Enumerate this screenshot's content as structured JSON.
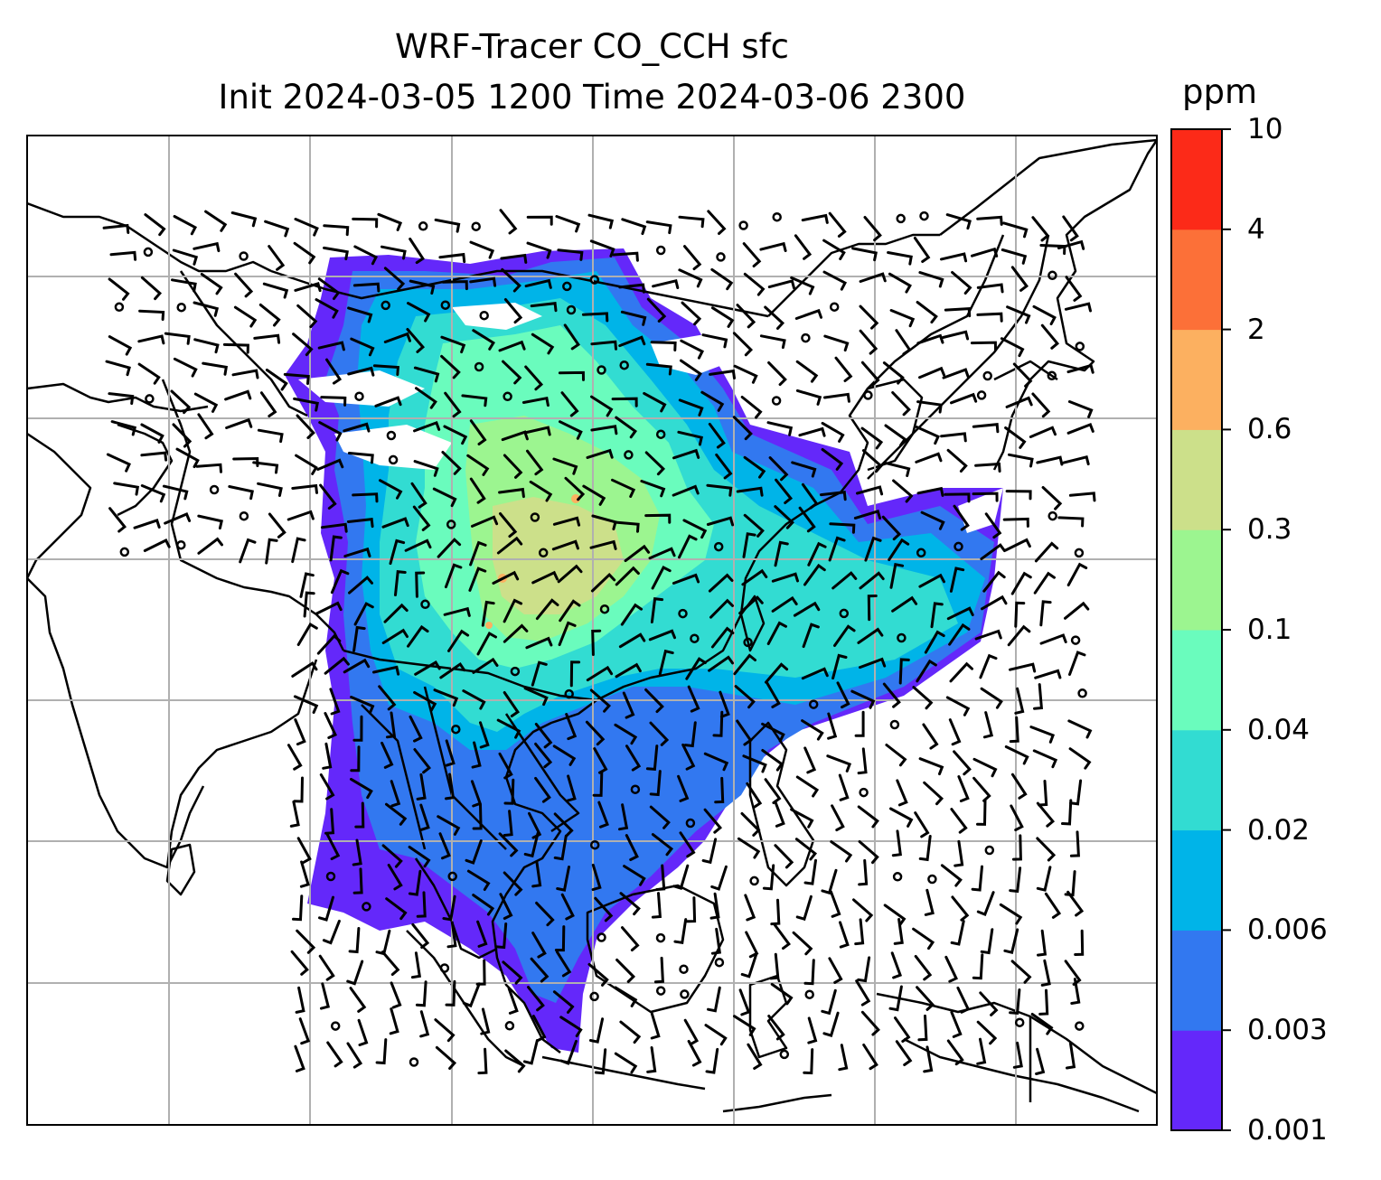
{
  "title_line1": "WRF-Tracer CO_CCH sfc",
  "title_line2": "Init 2024-03-05 1200 Time 2024-03-06 2300",
  "colorbar": {
    "unit": "ppm",
    "levels": [
      "0.001",
      "0.003",
      "0.006",
      "0.02",
      "0.04",
      "0.1",
      "0.3",
      "0.6",
      "2",
      "4",
      "10"
    ],
    "colors": [
      "#6428fa",
      "#3278f0",
      "#00b4e8",
      "#32dcd2",
      "#6afcbd",
      "#9cf590",
      "#cce08a",
      "#fcb060",
      "#fc7038",
      "#fc2a18"
    ]
  },
  "map": {
    "land_outline_color": "#000000",
    "gridline_color": "#b0b0b0",
    "frame_color": "#000000"
  }
}
